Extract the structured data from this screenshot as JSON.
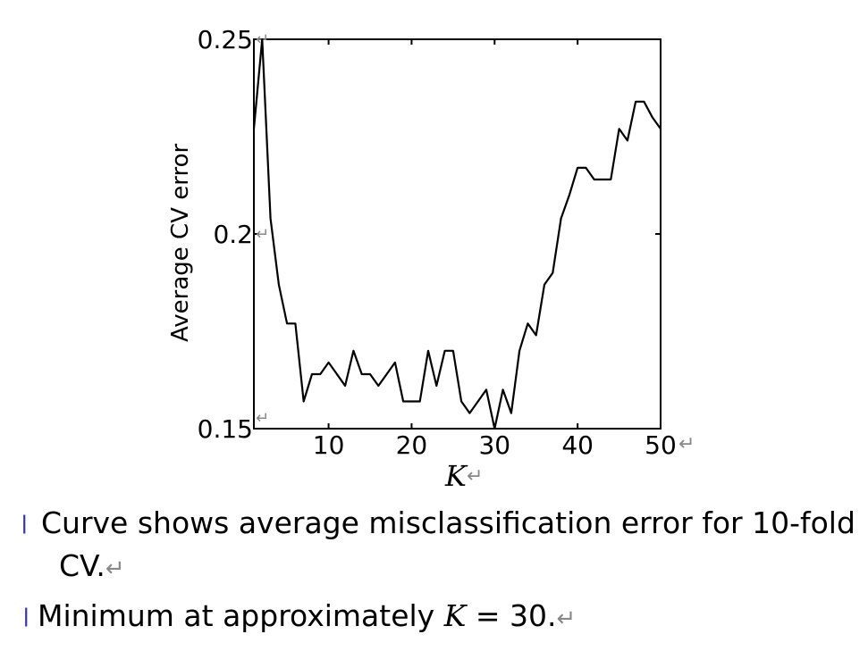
{
  "chart_data": {
    "type": "line",
    "xlabel": "K",
    "ylabel": "Average CV error",
    "xlim": [
      1,
      50
    ],
    "ylim": [
      0.15,
      0.25
    ],
    "xticks": [
      10,
      20,
      30,
      40,
      50
    ],
    "yticks": [
      0.15,
      0.2,
      0.25
    ],
    "ytick_labels": [
      "0.15",
      "0.2",
      "0.25"
    ],
    "grid": false,
    "series": [
      {
        "x": [
          1,
          2,
          3,
          4,
          5,
          6,
          7,
          8,
          9,
          10,
          11,
          12,
          13,
          14,
          15,
          16,
          17,
          18,
          19,
          20,
          21,
          22,
          23,
          24,
          25,
          26,
          27,
          28,
          29,
          30,
          31,
          32,
          33,
          34,
          35,
          36,
          37,
          38,
          39,
          40,
          41,
          42,
          43,
          44,
          45,
          46,
          47,
          48,
          49,
          50
        ],
        "y": [
          0.227,
          0.25,
          0.204,
          0.187,
          0.177,
          0.177,
          0.157,
          0.164,
          0.164,
          0.167,
          0.164,
          0.161,
          0.17,
          0.164,
          0.164,
          0.161,
          0.164,
          0.167,
          0.157,
          0.157,
          0.157,
          0.17,
          0.161,
          0.17,
          0.17,
          0.157,
          0.154,
          0.157,
          0.16,
          0.15,
          0.16,
          0.154,
          0.17,
          0.177,
          0.174,
          0.187,
          0.19,
          0.204,
          0.21,
          0.217,
          0.217,
          0.214,
          0.214,
          0.214,
          0.227,
          0.224,
          0.234,
          0.234,
          0.23,
          0.227
        ]
      }
    ]
  },
  "bullets": {
    "items": [
      {
        "lines": [
          "Curve shows average misclassification error for 10-fold",
          "CV."
        ]
      },
      {
        "before": "Minimum at approximately ",
        "var": "K",
        "after": " = 30."
      }
    ]
  }
}
